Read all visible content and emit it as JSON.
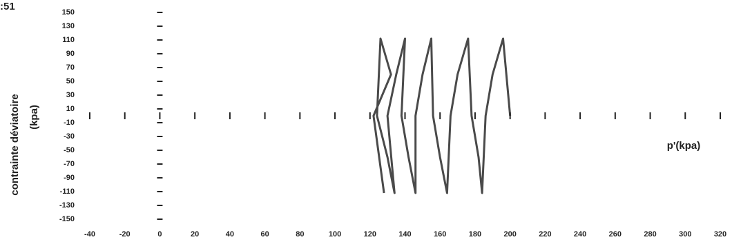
{
  "chart_data": {
    "type": "line",
    "corner_label": ":51",
    "ylabel": "contrainte déviatoire",
    "ylabel_unit": "(kpa)",
    "xlabel": "p'(kpa)",
    "x": [
      200,
      196,
      190,
      186,
      184,
      182,
      178,
      176,
      170,
      166,
      164,
      160,
      156,
      155,
      150,
      146,
      146,
      142,
      138,
      140,
      135,
      130,
      134,
      130,
      124,
      126,
      132,
      122,
      128
    ],
    "values": [
      0,
      112,
      60,
      0,
      -112,
      -60,
      0,
      112,
      60,
      0,
      -112,
      -60,
      0,
      112,
      60,
      0,
      -112,
      -60,
      0,
      112,
      60,
      0,
      -112,
      -60,
      0,
      112,
      60,
      0,
      -112
    ],
    "color": "#2a2a2a",
    "xlim": [
      -40,
      320
    ],
    "ylim": [
      -150,
      150
    ],
    "xticks": [
      -40,
      -20,
      0,
      20,
      40,
      60,
      80,
      100,
      120,
      140,
      160,
      180,
      200,
      220,
      240,
      260,
      280,
      300,
      320
    ],
    "yticks": [
      150,
      130,
      110,
      90,
      70,
      50,
      30,
      10,
      -10,
      -30,
      -50,
      -70,
      -90,
      -110,
      -130,
      -150
    ]
  }
}
